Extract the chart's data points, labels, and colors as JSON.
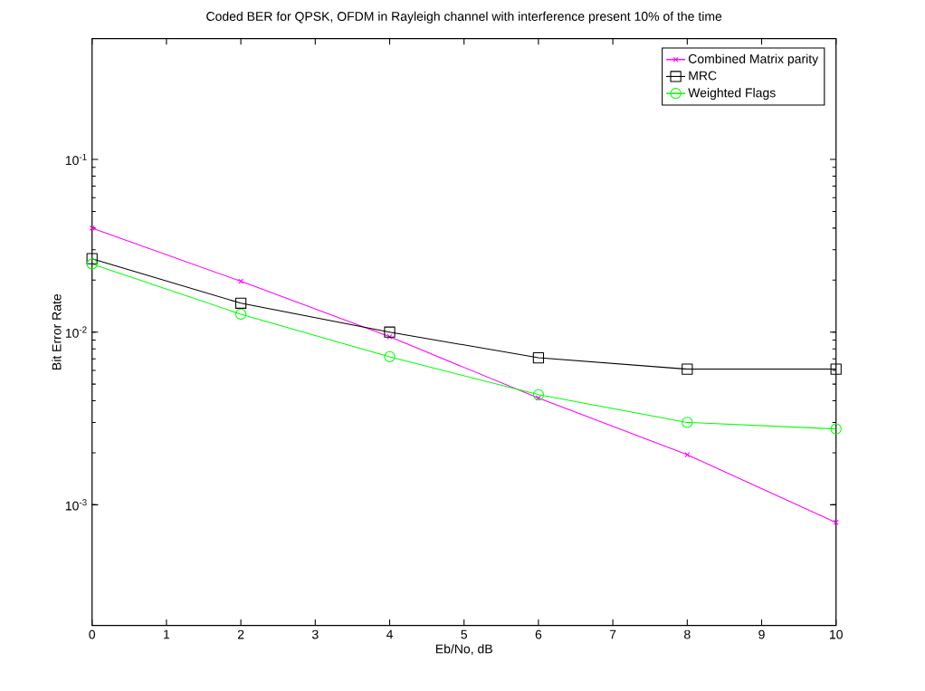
{
  "chart_data": {
    "type": "line",
    "title": "Coded BER for QPSK, OFDM in Rayleigh channel with interference present 10% of the time",
    "xlabel": "Eb/No, dB",
    "ylabel": "Bit Error Rate",
    "x": [
      0,
      2,
      4,
      6,
      8,
      10
    ],
    "series": [
      {
        "name": "Combined Matrix parity",
        "color": "#ff00ff",
        "marker": "cross",
        "values": [
          0.04,
          0.0197,
          0.0094,
          0.00415,
          0.00195,
          0.00079
        ]
      },
      {
        "name": "MRC",
        "color": "#000000",
        "marker": "square",
        "values": [
          0.0266,
          0.0147,
          0.01,
          0.0071,
          0.0061,
          0.0061
        ]
      },
      {
        "name": "Weighted Flags",
        "color": "#00ff00",
        "marker": "circle",
        "values": [
          0.0248,
          0.0127,
          0.0072,
          0.00434,
          0.003,
          0.00275
        ]
      }
    ],
    "xlim": [
      0,
      10
    ],
    "xticks": [
      0,
      1,
      2,
      3,
      4,
      5,
      6,
      7,
      8,
      9,
      10
    ],
    "ylim": [
      0.0002,
      0.5
    ],
    "yticks": [
      {
        "value": 0.001,
        "label": "10$^{-3}$"
      },
      {
        "value": 0.01,
        "label": "10$^{-2}$"
      },
      {
        "value": 0.1,
        "label": "10$^{-1}$"
      }
    ],
    "log": "y",
    "grid": false,
    "legend": "top right",
    "line_style": "solid"
  }
}
